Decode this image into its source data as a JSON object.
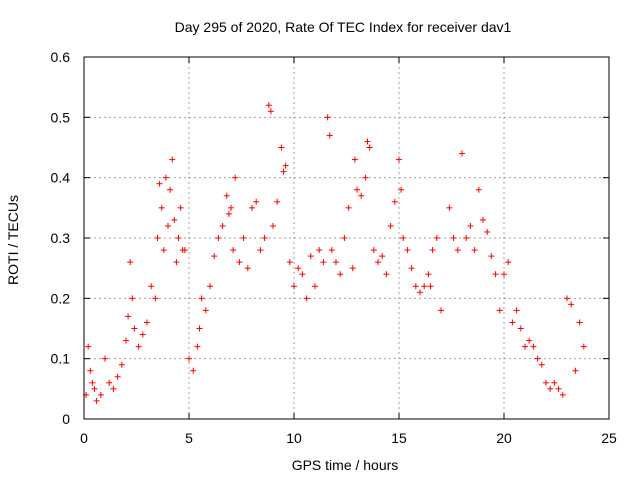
{
  "chart_data": {
    "type": "scatter",
    "title": "Day 295 of 2020, Rate Of TEC Index for receiver dav1",
    "xlabel": "GPS time / hours",
    "ylabel": "ROTI / TECUs",
    "xlim": [
      0,
      25
    ],
    "ylim": [
      0,
      0.6
    ],
    "x_ticks": [
      0,
      5,
      10,
      15,
      20,
      25
    ],
    "y_ticks": [
      0,
      0.1,
      0.2,
      0.3,
      0.4,
      0.5,
      0.6
    ],
    "x_tick_labels": [
      "0",
      "5",
      "10",
      "15",
      "20",
      "25"
    ],
    "y_tick_labels": [
      "0",
      "0.1",
      "0.2",
      "0.3",
      "0.4",
      "0.5",
      "0.6"
    ],
    "grid": true,
    "marker": "plus",
    "color": "#ff0000",
    "series": [
      {
        "x": [
          0.1,
          0.2,
          0.3,
          0.4,
          0.5,
          0.6,
          0.8,
          1.0,
          1.2,
          1.4,
          1.6,
          1.8,
          2.0,
          2.1,
          2.2,
          2.3,
          2.4,
          2.6,
          2.8,
          3.0,
          3.2,
          3.4,
          3.5,
          3.6,
          3.7,
          3.8,
          3.9,
          4.0,
          4.1,
          4.2,
          4.3,
          4.4,
          4.5,
          4.6,
          4.7,
          4.8,
          5.0,
          5.2,
          5.4,
          5.5,
          5.6,
          5.8,
          6.0,
          6.2,
          6.4,
          6.6,
          6.8,
          6.9,
          7.0,
          7.1,
          7.2,
          7.4,
          7.6,
          7.8,
          8.0,
          8.2,
          8.4,
          8.6,
          8.8,
          8.9,
          9.0,
          9.2,
          9.4,
          9.5,
          9.6,
          9.8,
          10.0,
          10.2,
          10.4,
          10.6,
          10.8,
          11.0,
          11.2,
          11.4,
          11.6,
          11.7,
          11.8,
          12.0,
          12.2,
          12.4,
          12.6,
          12.8,
          12.9,
          13.0,
          13.2,
          13.4,
          13.5,
          13.6,
          13.8,
          14.0,
          14.2,
          14.4,
          14.6,
          14.8,
          15.0,
          15.1,
          15.2,
          15.4,
          15.6,
          15.8,
          16.0,
          16.2,
          16.4,
          16.5,
          16.6,
          16.8,
          17.0,
          17.4,
          17.6,
          17.8,
          18.0,
          18.2,
          18.4,
          18.6,
          18.8,
          19.0,
          19.2,
          19.4,
          19.6,
          19.8,
          20.0,
          20.2,
          20.4,
          20.6,
          20.8,
          21.0,
          21.2,
          21.4,
          21.6,
          21.8,
          22.0,
          22.2,
          22.4,
          22.6,
          22.8,
          23.0,
          23.2,
          23.4,
          23.6,
          23.8
        ],
        "y": [
          0.04,
          0.12,
          0.08,
          0.06,
          0.05,
          0.03,
          0.04,
          0.1,
          0.06,
          0.05,
          0.07,
          0.09,
          0.13,
          0.17,
          0.26,
          0.2,
          0.15,
          0.12,
          0.14,
          0.16,
          0.22,
          0.2,
          0.3,
          0.39,
          0.35,
          0.28,
          0.4,
          0.32,
          0.38,
          0.43,
          0.33,
          0.26,
          0.3,
          0.35,
          0.28,
          0.28,
          0.1,
          0.08,
          0.12,
          0.15,
          0.2,
          0.18,
          0.22,
          0.27,
          0.3,
          0.32,
          0.37,
          0.34,
          0.35,
          0.28,
          0.4,
          0.26,
          0.3,
          0.25,
          0.35,
          0.36,
          0.28,
          0.3,
          0.52,
          0.51,
          0.32,
          0.36,
          0.45,
          0.41,
          0.42,
          0.26,
          0.22,
          0.25,
          0.24,
          0.2,
          0.27,
          0.22,
          0.28,
          0.26,
          0.5,
          0.47,
          0.28,
          0.26,
          0.24,
          0.3,
          0.35,
          0.25,
          0.43,
          0.38,
          0.37,
          0.4,
          0.46,
          0.45,
          0.28,
          0.26,
          0.27,
          0.24,
          0.32,
          0.36,
          0.43,
          0.38,
          0.3,
          0.28,
          0.25,
          0.22,
          0.21,
          0.22,
          0.24,
          0.22,
          0.28,
          0.3,
          0.18,
          0.35,
          0.3,
          0.28,
          0.44,
          0.3,
          0.32,
          0.28,
          0.38,
          0.33,
          0.31,
          0.27,
          0.24,
          0.18,
          0.24,
          0.26,
          0.16,
          0.18,
          0.15,
          0.12,
          0.13,
          0.12,
          0.1,
          0.09,
          0.06,
          0.05,
          0.06,
          0.05,
          0.04,
          0.2,
          0.19,
          0.08,
          0.16,
          0.12
        ]
      }
    ]
  }
}
